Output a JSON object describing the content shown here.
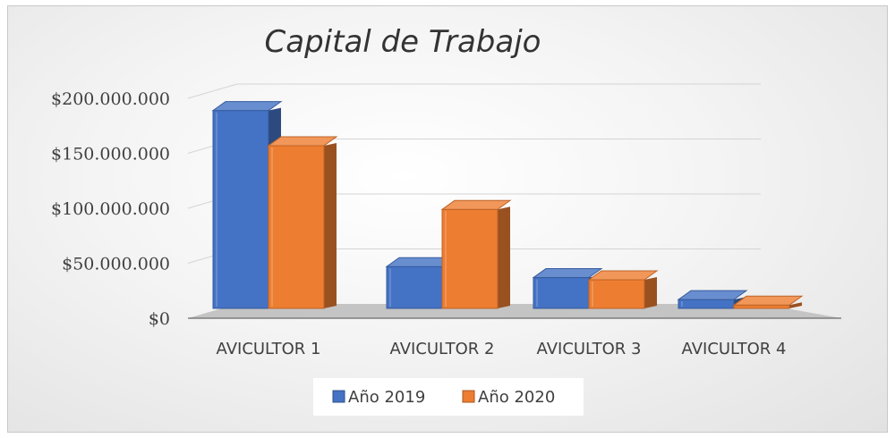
{
  "chart_data": {
    "type": "bar",
    "title": "Capital de Trabajo",
    "categories": [
      "AVICULTOR 1",
      "AVICULTOR 2",
      "AVICULTOR 3",
      "AVICULTOR 4"
    ],
    "series": [
      {
        "name": "Año 2019",
        "values": [
          180000000,
          38000000,
          28000000,
          8000000
        ],
        "color": "#4472C4"
      },
      {
        "name": "Año 2020",
        "values": [
          148000000,
          90000000,
          26000000,
          3000000
        ],
        "color": "#ED7D31"
      }
    ],
    "ylim": [
      0,
      200000000
    ],
    "yticks": [
      0,
      50000000,
      100000000,
      150000000,
      200000000
    ],
    "ytick_labels": [
      "$0",
      "$50.000.000",
      "$100.000.000",
      "$150.000.000",
      "$200.000.000"
    ],
    "grid": true,
    "legend_position": "bottom",
    "xlabel": "",
    "ylabel": ""
  }
}
